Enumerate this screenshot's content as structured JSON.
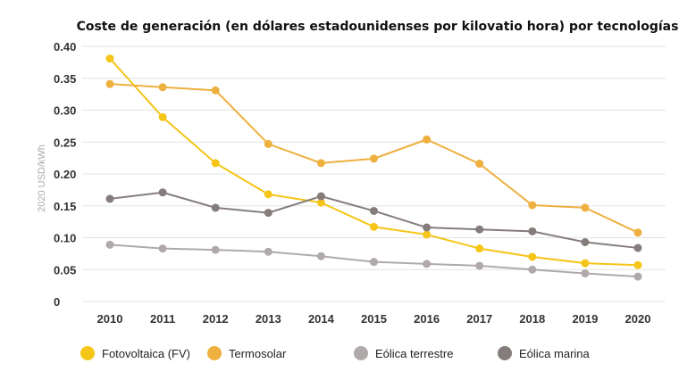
{
  "chart_data": {
    "type": "line",
    "title": "Coste de generación (en dólares estadounidenses por kilovatio hora) por tecnologías",
    "ylabel": "2020 USD/kWh",
    "xlabel": "",
    "ylim": [
      0,
      0.4
    ],
    "yticks": [
      "0",
      "0.05",
      "0.10",
      "0.15",
      "0.20",
      "0.25",
      "0.30",
      "0.35",
      "0.40"
    ],
    "ytick_values": [
      0,
      0.05,
      0.1,
      0.15,
      0.2,
      0.25,
      0.3,
      0.35,
      0.4
    ],
    "categories": [
      "2010",
      "2011",
      "2012",
      "2013",
      "2014",
      "2015",
      "2016",
      "2017",
      "2018",
      "2019",
      "2020"
    ],
    "grid": true,
    "legend_placement": "bottom",
    "series": [
      {
        "name": "Fotovoltaica (FV)",
        "color": "#f5c518",
        "values": [
          0.381,
          0.289,
          0.217,
          0.168,
          0.155,
          0.117,
          0.105,
          0.083,
          0.07,
          0.06,
          0.057
        ]
      },
      {
        "name": "Termosolar",
        "color": "#eeb03f",
        "values": [
          0.341,
          0.336,
          0.331,
          0.247,
          0.217,
          0.224,
          0.254,
          0.216,
          0.151,
          0.147,
          0.108
        ]
      },
      {
        "name": "Eólica terrestre",
        "color": "#b0a9a9",
        "values": [
          0.089,
          0.083,
          0.081,
          0.078,
          0.071,
          0.062,
          0.059,
          0.056,
          0.05,
          0.044,
          0.039
        ]
      },
      {
        "name": "Eólica marina",
        "color": "#857c7c",
        "values": [
          0.161,
          0.171,
          0.147,
          0.139,
          0.165,
          0.142,
          0.116,
          0.113,
          0.11,
          0.093,
          0.084
        ]
      }
    ]
  }
}
